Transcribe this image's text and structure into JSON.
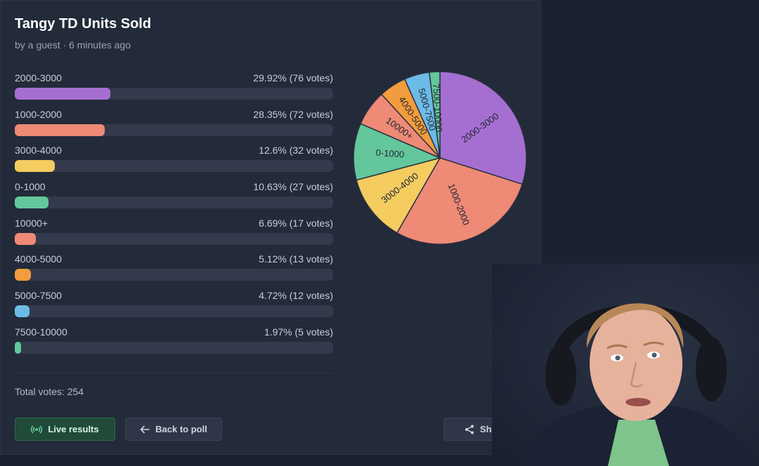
{
  "poll": {
    "title": "Tangy TD Units Sold",
    "meta": "by a guest · 6 minutes ago",
    "total_label": "Total votes: 254"
  },
  "chart_data": {
    "type": "pie",
    "total_votes": 254,
    "categories": [
      "2000-3000",
      "1000-2000",
      "3000-4000",
      "0-1000",
      "10000+",
      "4000-5000",
      "5000-7500",
      "7500-10000"
    ],
    "values": [
      76,
      72,
      32,
      27,
      17,
      13,
      12,
      5
    ],
    "percent": [
      29.92,
      28.35,
      12.6,
      10.63,
      6.69,
      5.12,
      4.72,
      1.97
    ],
    "colors": [
      "#a56fd1",
      "#ee8a76",
      "#f4cc60",
      "#63c79b",
      "#ee8a76",
      "#f29c3d",
      "#6cbbe6",
      "#63c79b"
    ]
  },
  "results": [
    {
      "label": "2000-3000",
      "stat": "29.92% (76 votes)"
    },
    {
      "label": "1000-2000",
      "stat": "28.35% (72 votes)"
    },
    {
      "label": "3000-4000",
      "stat": "12.6% (32 votes)"
    },
    {
      "label": "0-1000",
      "stat": "10.63% (27 votes)"
    },
    {
      "label": "10000+",
      "stat": "6.69% (17 votes)"
    },
    {
      "label": "4000-5000",
      "stat": "5.12% (13 votes)"
    },
    {
      "label": "5000-7500",
      "stat": "4.72% (12 votes)"
    },
    {
      "label": "7500-10000",
      "stat": "1.97% (5 votes)"
    }
  ],
  "buttons": {
    "live": "Live results",
    "live_icon": "broadcast-icon",
    "back": "Back to poll",
    "back_icon": "arrow-left-icon",
    "share": "Share",
    "share_icon": "share-icon"
  },
  "webcam": {
    "description_icon": "webcam-feed"
  }
}
